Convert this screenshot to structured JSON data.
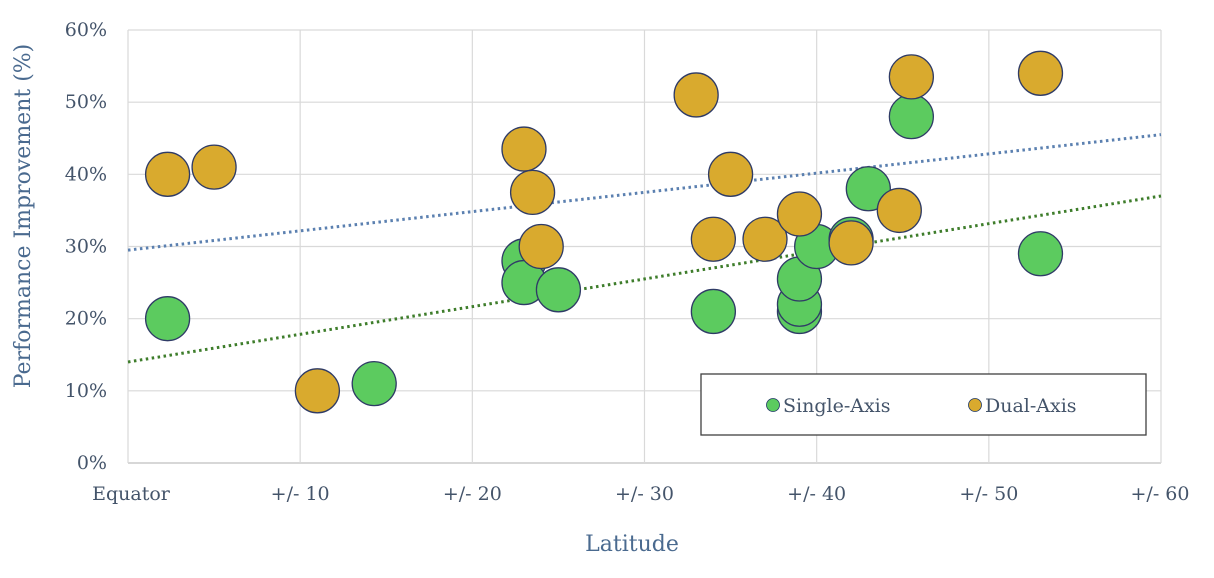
{
  "chart_data": {
    "type": "scatter",
    "xlabel": "Latitude",
    "ylabel": "Performance Improvement (%)",
    "xlim": [
      0,
      60
    ],
    "ylim": [
      0,
      0.6
    ],
    "x_ticks": [
      {
        "value": 0,
        "label": "Equator"
      },
      {
        "value": 10,
        "label": "+/- 10"
      },
      {
        "value": 20,
        "label": "+/- 20"
      },
      {
        "value": 30,
        "label": "+/- 30"
      },
      {
        "value": 40,
        "label": "+/- 40"
      },
      {
        "value": 50,
        "label": "+/- 50"
      },
      {
        "value": 60,
        "label": "+/- 60"
      }
    ],
    "y_ticks": [
      {
        "value": 0,
        "label": "0%"
      },
      {
        "value": 0.1,
        "label": "10%"
      },
      {
        "value": 0.2,
        "label": "20%"
      },
      {
        "value": 0.3,
        "label": "30%"
      },
      {
        "value": 0.4,
        "label": "40%"
      },
      {
        "value": 0.5,
        "label": "50%"
      },
      {
        "value": 0.6,
        "label": "60%"
      }
    ],
    "grid": true,
    "legend_position": "bottom-right inside",
    "series": [
      {
        "name": "Single-Axis",
        "color": "#5CCB5F",
        "trendline_color": "#3E7D2B",
        "trendline": {
          "start": [
            0,
            0.14
          ],
          "end": [
            60,
            0.37
          ]
        },
        "points": [
          {
            "x": 2.3,
            "y": 0.2
          },
          {
            "x": 14.3,
            "y": 0.11
          },
          {
            "x": 23.0,
            "y": 0.28
          },
          {
            "x": 23.0,
            "y": 0.25
          },
          {
            "x": 25.0,
            "y": 0.24
          },
          {
            "x": 34.0,
            "y": 0.21
          },
          {
            "x": 39.0,
            "y": 0.21
          },
          {
            "x": 39.0,
            "y": 0.22
          },
          {
            "x": 39.0,
            "y": 0.255
          },
          {
            "x": 40.0,
            "y": 0.3
          },
          {
            "x": 42.0,
            "y": 0.31
          },
          {
            "x": 43.0,
            "y": 0.38
          },
          {
            "x": 45.5,
            "y": 0.48
          },
          {
            "x": 53.0,
            "y": 0.29
          }
        ]
      },
      {
        "name": "Dual-Axis",
        "color": "#D9AA2E",
        "trendline_color": "#5B80B0",
        "trendline": {
          "start": [
            0,
            0.295
          ],
          "end": [
            60,
            0.455
          ]
        },
        "points": [
          {
            "x": 2.3,
            "y": 0.4
          },
          {
            "x": 5.0,
            "y": 0.41
          },
          {
            "x": 11.0,
            "y": 0.1
          },
          {
            "x": 23.0,
            "y": 0.435
          },
          {
            "x": 23.5,
            "y": 0.375
          },
          {
            "x": 24.0,
            "y": 0.3
          },
          {
            "x": 33.0,
            "y": 0.51
          },
          {
            "x": 34.0,
            "y": 0.31
          },
          {
            "x": 35.0,
            "y": 0.4
          },
          {
            "x": 37.0,
            "y": 0.31
          },
          {
            "x": 39.0,
            "y": 0.345
          },
          {
            "x": 42.0,
            "y": 0.305
          },
          {
            "x": 44.8,
            "y": 0.35
          },
          {
            "x": 45.5,
            "y": 0.535
          },
          {
            "x": 53.0,
            "y": 0.54
          }
        ]
      }
    ]
  }
}
